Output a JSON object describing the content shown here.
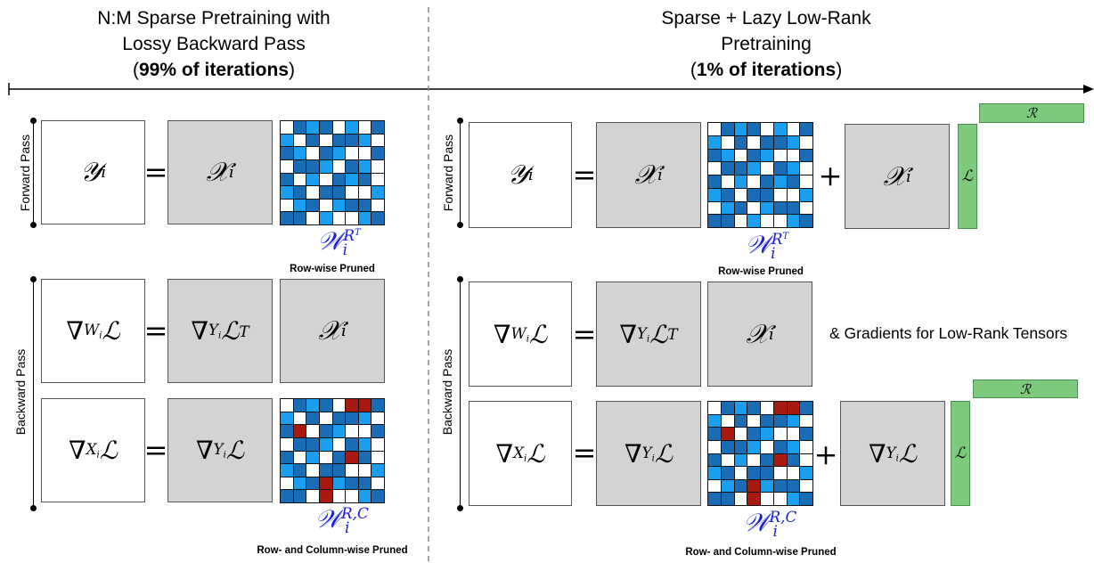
{
  "left_header": {
    "line1": "N:M Sparse Pretraining with",
    "line2": "Lossy Backward Pass",
    "line3_pre": "(",
    "line3_bold": "99% of iterations",
    "line3_post": ")"
  },
  "right_header": {
    "line1": "Sparse + Lazy Low-Rank",
    "line2": "Pretraining",
    "line3_pre": "(",
    "line3_bold": "1% of iterations",
    "line3_post": ")"
  },
  "side_labels": {
    "forward": "Forward Pass",
    "backward": "Backward Pass"
  },
  "math": {
    "Y": "𝒴",
    "X": "𝒳",
    "i": "i",
    "nabla": "∇",
    "L": "ℒ",
    "R": "ℛ",
    "W": "W",
    "Ysub": "Y",
    "Xsub": "X",
    "T": "T",
    "W_script": "𝒲",
    "RT": "R",
    "RC": "R,C",
    "equals": "=",
    "plus": "+"
  },
  "captions": {
    "row_pruned": "Row-wise Pruned",
    "row_col_pruned": "Row- and Column-wise Pruned",
    "low_rank_grad": "& Gradients for Low-Rank Tensors"
  },
  "colors": {
    "dark_blue": "#1a6db5",
    "light_blue": "#1a9ef0",
    "red": "#a81a10",
    "green": "#7dc97e",
    "gray": "#d3d3d3",
    "script_blue": "#1a22d8"
  },
  "matrices": {
    "row_pruned": [
      [
        0,
        1,
        2,
        1,
        0,
        2,
        0,
        1
      ],
      [
        2,
        0,
        1,
        0,
        1,
        1,
        2,
        0
      ],
      [
        1,
        2,
        0,
        1,
        2,
        0,
        0,
        1
      ],
      [
        0,
        1,
        1,
        2,
        0,
        1,
        2,
        0
      ],
      [
        1,
        0,
        2,
        0,
        1,
        2,
        1,
        0
      ],
      [
        2,
        1,
        0,
        1,
        1,
        0,
        0,
        2
      ],
      [
        0,
        2,
        1,
        0,
        2,
        1,
        1,
        0
      ],
      [
        1,
        1,
        0,
        2,
        0,
        0,
        2,
        1
      ]
    ],
    "row_col_pruned": [
      [
        0,
        1,
        2,
        1,
        0,
        3,
        3,
        1
      ],
      [
        2,
        0,
        1,
        0,
        1,
        1,
        2,
        0
      ],
      [
        1,
        3,
        0,
        1,
        2,
        0,
        0,
        1
      ],
      [
        0,
        1,
        1,
        2,
        0,
        1,
        2,
        0
      ],
      [
        1,
        0,
        2,
        0,
        1,
        3,
        1,
        0
      ],
      [
        2,
        1,
        0,
        1,
        1,
        0,
        0,
        2
      ],
      [
        0,
        2,
        1,
        3,
        2,
        1,
        1,
        0
      ],
      [
        1,
        1,
        0,
        3,
        0,
        0,
        2,
        1
      ]
    ]
  }
}
